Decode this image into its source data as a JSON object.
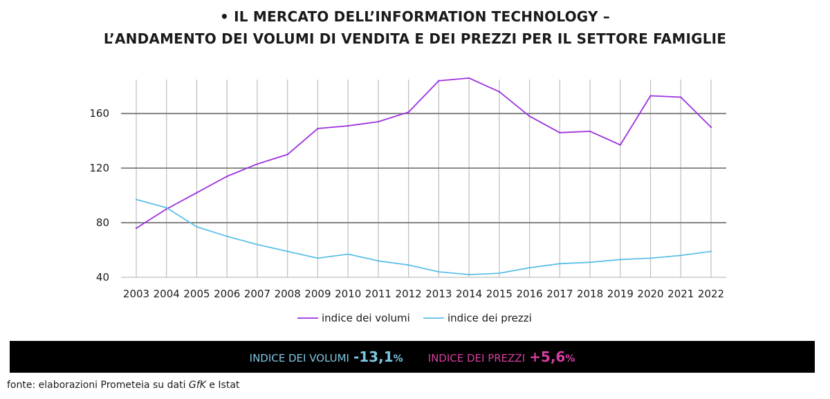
{
  "title": {
    "line1": "•  IL MERCATO DELL’INFORMATION TECHNOLOGY –",
    "line2": "L’ANDAMENTO DEI VOLUMI DI VENDITA E DEI PREZZI PER IL SETTORE FAMIGLIE"
  },
  "chart_data": {
    "type": "line",
    "x": [
      "2003",
      "2004",
      "2005",
      "2006",
      "2007",
      "2008",
      "2009",
      "2010",
      "2011",
      "2012",
      "2013",
      "2014",
      "2015",
      "2016",
      "2017",
      "2018",
      "2019",
      "2020",
      "2021",
      "2022"
    ],
    "ylim": [
      40,
      190
    ],
    "yticks": [
      40,
      80,
      120,
      160
    ],
    "grid": true,
    "legend_position": "bottom",
    "series": [
      {
        "name": "indice dei volumi",
        "color": "#9b30e0",
        "values": [
          76,
          90,
          102,
          114,
          123,
          130,
          149,
          151,
          154,
          161,
          184,
          186,
          176,
          158,
          146,
          147,
          137,
          173,
          172,
          150
        ]
      },
      {
        "name": "indice dei prezzi",
        "color": "#5bc0e8",
        "values": [
          97,
          91,
          77,
          70,
          64,
          59,
          54,
          57,
          52,
          49,
          44,
          42,
          43,
          47,
          50,
          51,
          53,
          54,
          56,
          59
        ]
      }
    ]
  },
  "summary": {
    "volumi_label": "INDICE DEI VOLUMI",
    "volumi_value": "-13,1",
    "volumi_pct": "%",
    "volumi_color": "#7ec8e3",
    "prezzi_label": "INDICE DEI PREZZI",
    "prezzi_value": "+5,6",
    "prezzi_pct": "%",
    "prezzi_color": "#d63ea0"
  },
  "source": {
    "prefix": "fonte: elaborazioni Prometeia su dati ",
    "italic": "GfK",
    "suffix": " e Istat"
  }
}
